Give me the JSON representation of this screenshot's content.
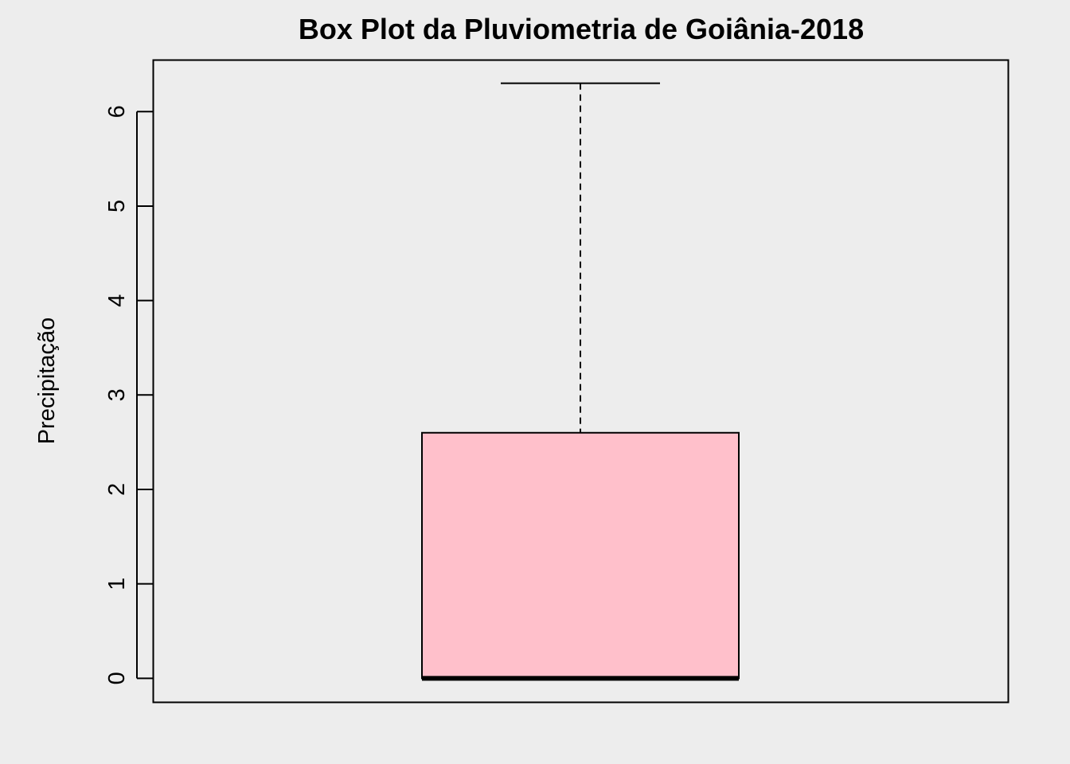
{
  "chart_data": {
    "type": "boxplot",
    "title": "Box Plot da Pluviometria de Goiânia-2018",
    "xlabel": "",
    "ylabel": "Precipitação",
    "ylim": [
      -0.25,
      6.55
    ],
    "yticks": [
      0,
      1,
      2,
      3,
      4,
      5,
      6
    ],
    "ytick_labels": [
      "0",
      "1",
      "2",
      "3",
      "4",
      "5",
      "6"
    ],
    "grid": false,
    "box": {
      "min": 0,
      "q1": 0,
      "median": 0,
      "q3": 2.6,
      "max": 6.3,
      "fill": "#FFC0CB"
    }
  }
}
